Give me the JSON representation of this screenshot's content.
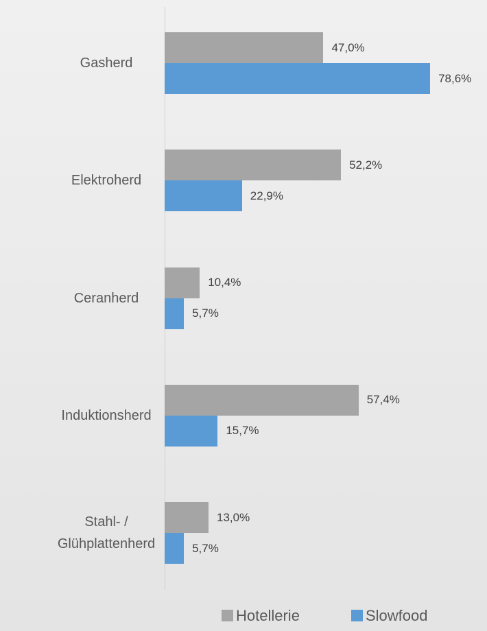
{
  "chart_data": {
    "type": "hbar",
    "categories": [
      "Gasherd",
      "Elektroherd",
      "Ceranherd",
      "Induktionsherd",
      "Stahl- /\nGlühplattenherd"
    ],
    "series": [
      {
        "name": "Hotellerie",
        "color": "#a5a5a5",
        "values": [
          47.0,
          52.2,
          10.4,
          57.4,
          13.0
        ],
        "value_labels": [
          "47,0%",
          "52,2%",
          "10,4%",
          "57,4%",
          "13,0%"
        ]
      },
      {
        "name": "Slowfood",
        "color": "#5b9bd5",
        "values": [
          78.6,
          22.9,
          5.7,
          15.7,
          5.7
        ],
        "value_labels": [
          "78,6%",
          "22,9%",
          "5,7%",
          "15,7%",
          "5,7%"
        ]
      }
    ],
    "legend": "bottom"
  }
}
